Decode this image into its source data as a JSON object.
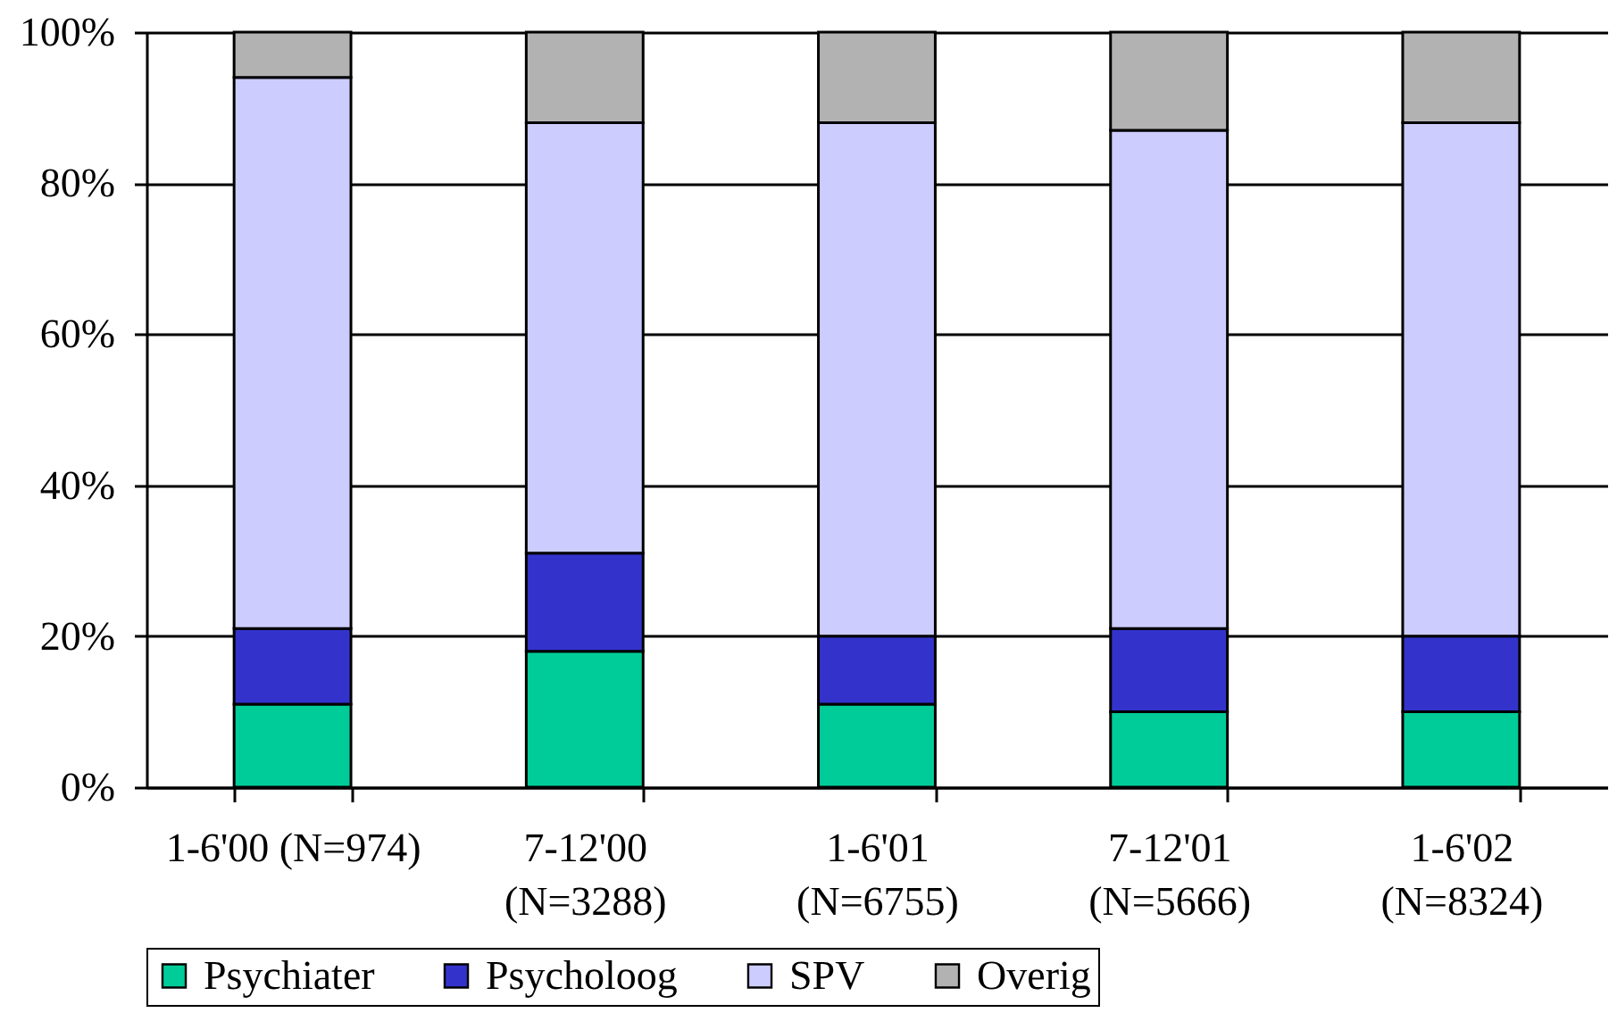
{
  "chart_data": {
    "type": "bar",
    "stacked": true,
    "categories": [
      "1-6'00 (N=974)",
      "7-12'00 (N=3288)",
      "1-6'01 (N=6755)",
      "7-12'01 (N=5666)",
      "1-6'02 (N=8324)"
    ],
    "series": [
      {
        "name": "Psychiater",
        "color": "#00cc99",
        "values": [
          11,
          18,
          11,
          10,
          10
        ]
      },
      {
        "name": "Psycholoog",
        "color": "#3333cc",
        "values": [
          10,
          13,
          9,
          11,
          10
        ]
      },
      {
        "name": "SPV",
        "color": "#ccccff",
        "values": [
          73,
          57,
          68,
          66,
          68
        ]
      },
      {
        "name": "Overig",
        "color": "#b2b2b2",
        "values": [
          6,
          12,
          12,
          13,
          12
        ]
      }
    ],
    "ylim": [
      0,
      100
    ],
    "yticks": [
      {
        "value": 0,
        "label": "0%"
      },
      {
        "value": 20,
        "label": "20%"
      },
      {
        "value": 40,
        "label": "40%"
      },
      {
        "value": 60,
        "label": "60%"
      },
      {
        "value": 80,
        "label": "80%"
      },
      {
        "value": 100,
        "label": "100%"
      }
    ],
    "grid": "y",
    "legend": "bottom"
  }
}
